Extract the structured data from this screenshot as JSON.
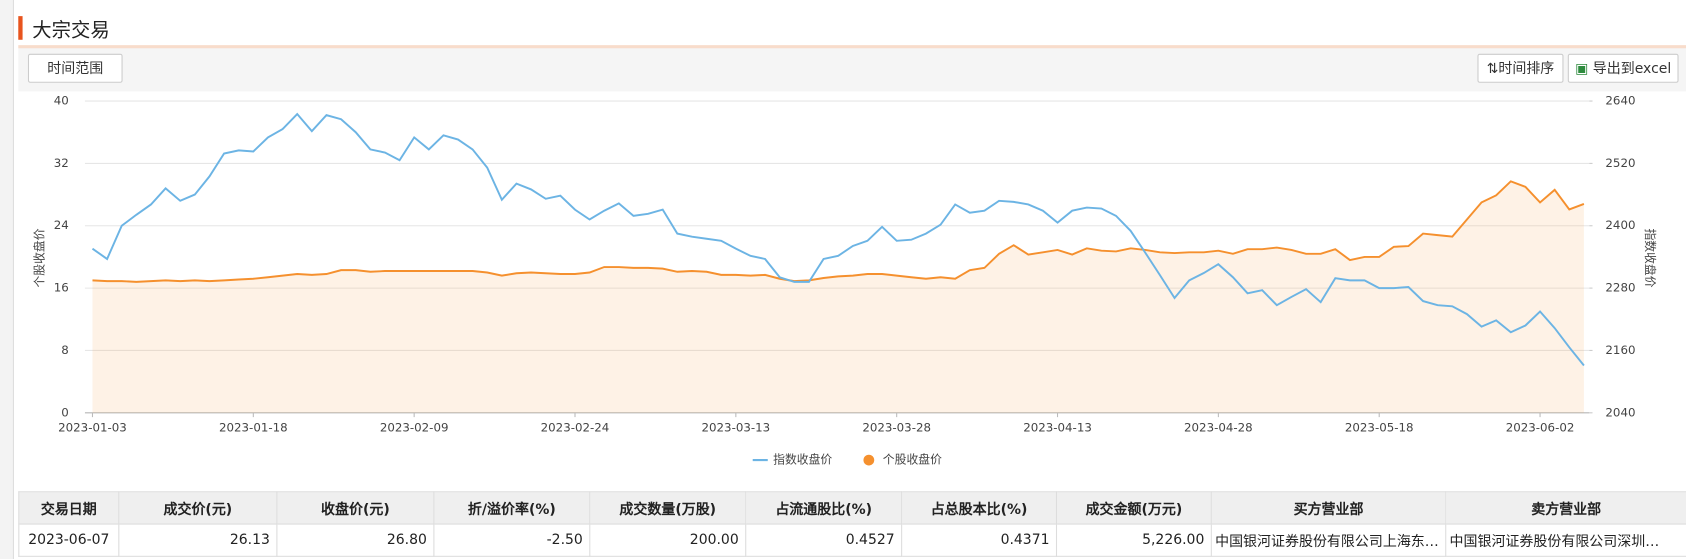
{
  "header": {
    "title": "大宗交易"
  },
  "toolbar": {
    "range_button": "时间范围",
    "sort_button": "时间排序",
    "export_button": "导出到excel"
  },
  "chart_data": {
    "type": "line",
    "ylabel": "个股收盘价",
    "y2label": "指数收盘价",
    "categories": [
      "2023-01-03",
      null,
      null,
      null,
      null,
      null,
      null,
      null,
      null,
      null,
      null,
      "2023-01-18",
      null,
      null,
      null,
      null,
      null,
      null,
      null,
      null,
      null,
      null,
      "2023-02-09",
      null,
      null,
      null,
      null,
      null,
      null,
      null,
      null,
      null,
      null,
      "2023-02-24",
      null,
      null,
      null,
      null,
      null,
      null,
      null,
      null,
      null,
      null,
      "2023-03-13",
      null,
      null,
      null,
      null,
      null,
      null,
      null,
      null,
      null,
      null,
      "2023-03-28",
      null,
      null,
      null,
      null,
      null,
      null,
      null,
      null,
      null,
      null,
      "2023-04-13",
      null,
      null,
      null,
      null,
      null,
      null,
      null,
      null,
      null,
      null,
      "2023-04-28",
      null,
      null,
      null,
      null,
      null,
      null,
      null,
      null,
      null,
      null,
      "2023-05-18",
      null,
      null,
      null,
      null,
      null,
      null,
      null,
      null,
      null,
      null,
      "2023-06-02",
      null,
      null,
      null
    ],
    "ylim": [
      0,
      40
    ],
    "yticks": [
      0,
      8,
      16,
      24,
      32,
      40
    ],
    "y2lim": [
      2040,
      2640
    ],
    "y2ticks": [
      2040,
      2160,
      2280,
      2400,
      2520,
      2640
    ],
    "grid": true,
    "series": [
      {
        "name": "指数收盘价",
        "color": "#6cb4e4",
        "axis": "y2",
        "values": [
          2356,
          2336,
          2400,
          2421,
          2441,
          2472,
          2448,
          2460,
          2495,
          2539,
          2545,
          2543,
          2570,
          2586,
          2615,
          2582,
          2613,
          2605,
          2580,
          2547,
          2541,
          2526,
          2570,
          2547,
          2574,
          2566,
          2547,
          2512,
          2450,
          2481,
          2470,
          2452,
          2458,
          2431,
          2412,
          2429,
          2443,
          2419,
          2423,
          2431,
          2385,
          2379,
          2375,
          2371,
          2356,
          2342,
          2336,
          2301,
          2292,
          2292,
          2336,
          2342,
          2361,
          2371,
          2398,
          2371,
          2373,
          2385,
          2402,
          2441,
          2425,
          2429,
          2448,
          2446,
          2441,
          2429,
          2406,
          2429,
          2435,
          2433,
          2419,
          2390,
          2348,
          2305,
          2261,
          2295,
          2309,
          2326,
          2301,
          2270,
          2276,
          2247,
          2263,
          2278,
          2253,
          2299,
          2295,
          2295,
          2280,
          2280,
          2282,
          2255,
          2247,
          2245,
          2230,
          2206,
          2218,
          2195,
          2208,
          2235,
          2203,
          2166,
          2131
        ]
      },
      {
        "name": "个股收盘价",
        "color": "#f5902e",
        "area": true,
        "values": [
          17.0,
          16.9,
          16.9,
          16.8,
          16.9,
          17.0,
          16.9,
          17.0,
          16.9,
          17.0,
          17.1,
          17.2,
          17.4,
          17.6,
          17.8,
          17.7,
          17.8,
          18.3,
          18.3,
          18.1,
          18.2,
          18.2,
          18.2,
          18.2,
          18.2,
          18.2,
          18.2,
          18.0,
          17.6,
          17.9,
          18.0,
          17.9,
          17.8,
          17.8,
          18.0,
          18.7,
          18.7,
          18.6,
          18.6,
          18.5,
          18.1,
          18.2,
          18.1,
          17.7,
          17.7,
          17.6,
          17.7,
          17.2,
          16.9,
          17.0,
          17.3,
          17.5,
          17.6,
          17.8,
          17.8,
          17.6,
          17.4,
          17.2,
          17.4,
          17.2,
          18.3,
          18.6,
          20.4,
          21.5,
          20.3,
          20.6,
          20.9,
          20.3,
          21.1,
          20.8,
          20.7,
          21.1,
          20.9,
          20.6,
          20.5,
          20.6,
          20.6,
          20.8,
          20.4,
          21.0,
          21.0,
          21.2,
          20.9,
          20.4,
          20.4,
          21.0,
          19.6,
          20.0,
          20.0,
          21.3,
          21.4,
          23.0,
          22.8,
          22.6,
          24.8,
          27.0,
          27.9,
          29.7,
          29.0,
          27.0,
          28.6,
          26.1,
          26.8
        ]
      }
    ]
  },
  "table": {
    "columns": [
      "交易日期",
      "成交价(元)",
      "收盘价(元)",
      "折/溢价率(%)",
      "成交数量(万股)",
      "占流通股比(%)",
      "占总股本比(%)",
      "成交金额(万元)",
      "买方营业部",
      "卖方营业部"
    ],
    "rows": [
      [
        "2023-06-07",
        "26.13",
        "26.80",
        "-2.50",
        "200.00",
        "0.4527",
        "0.4371",
        "5,226.00",
        "中国银河证券股份有限公司上海东…",
        "中国银河证券股份有限公司深圳…"
      ]
    ]
  }
}
